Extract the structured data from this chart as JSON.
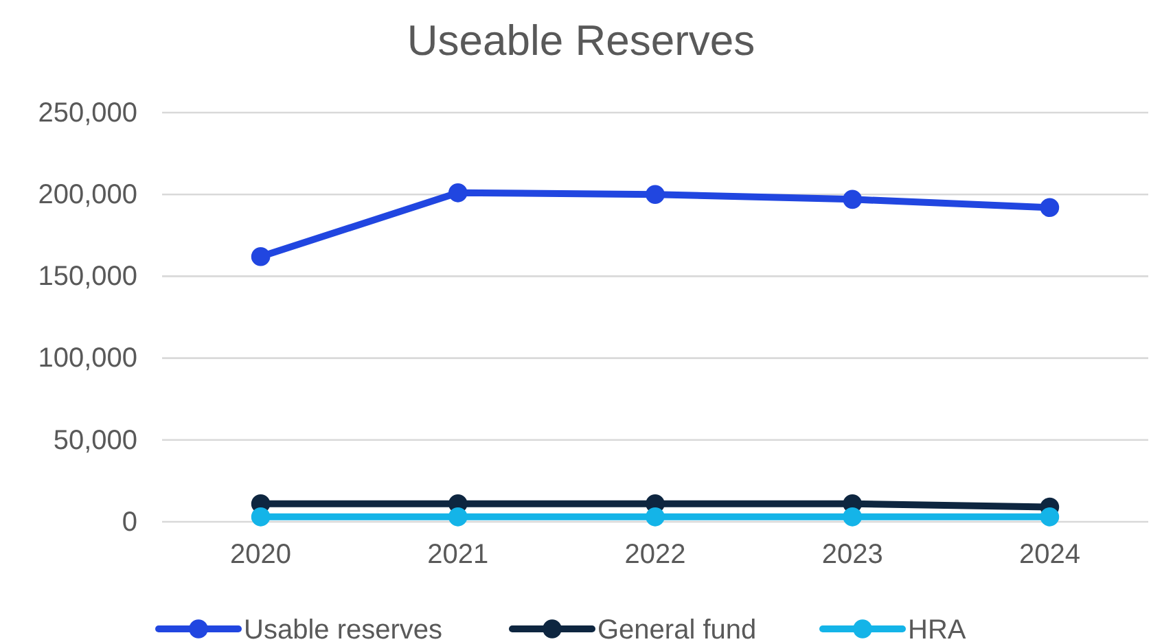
{
  "chart_data": {
    "type": "line",
    "title": "Useable Reserves",
    "categories": [
      "2020",
      "2021",
      "2022",
      "2023",
      "2024"
    ],
    "series": [
      {
        "name": "Usable reserves",
        "color": "#2146e0",
        "values": [
          162000,
          201000,
          200000,
          197000,
          192000
        ]
      },
      {
        "name": "General fund",
        "color": "#0e2640",
        "values": [
          11000,
          11000,
          11000,
          11000,
          9000
        ]
      },
      {
        "name": "HRA",
        "color": "#14b4e8",
        "values": [
          3000,
          3000,
          3000,
          3000,
          3000
        ]
      }
    ],
    "ylim": [
      0,
      250000
    ],
    "yticks": [
      {
        "value": 0,
        "label": "0"
      },
      {
        "value": 50000,
        "label": "50,000"
      },
      {
        "value": 100000,
        "label": "100,000"
      },
      {
        "value": 150000,
        "label": "150,000"
      },
      {
        "value": 200000,
        "label": "200,000"
      },
      {
        "value": 250000,
        "label": "250,000"
      }
    ],
    "grid": "y",
    "legend": "bottom",
    "marker": "circle",
    "line_style": "solid"
  }
}
